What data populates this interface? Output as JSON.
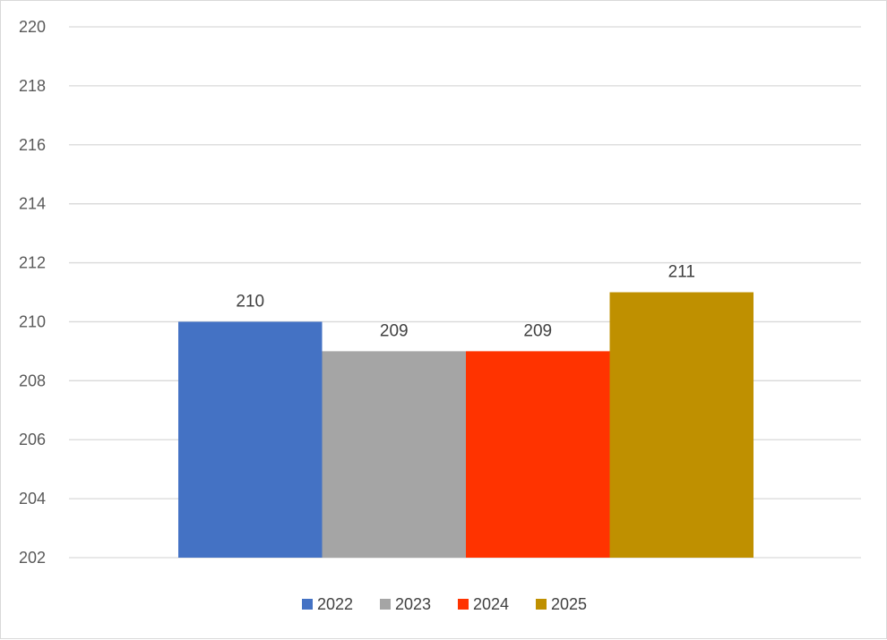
{
  "chart_data": {
    "type": "bar",
    "title": "",
    "xlabel": "",
    "ylabel": "",
    "ylim": [
      202,
      220
    ],
    "yticks": [
      202,
      204,
      206,
      208,
      210,
      212,
      214,
      216,
      218,
      220
    ],
    "grid": true,
    "legend_position": "bottom",
    "series": [
      {
        "name": "2022",
        "value": 210,
        "label": "210",
        "color": "#4472c4"
      },
      {
        "name": "2023",
        "value": 209,
        "label": "209",
        "color": "#a5a5a5"
      },
      {
        "name": "2024",
        "value": 209,
        "label": "209",
        "color": "#ff3300"
      },
      {
        "name": "2025",
        "value": 211,
        "label": "211",
        "color": "#bf9000"
      }
    ]
  }
}
